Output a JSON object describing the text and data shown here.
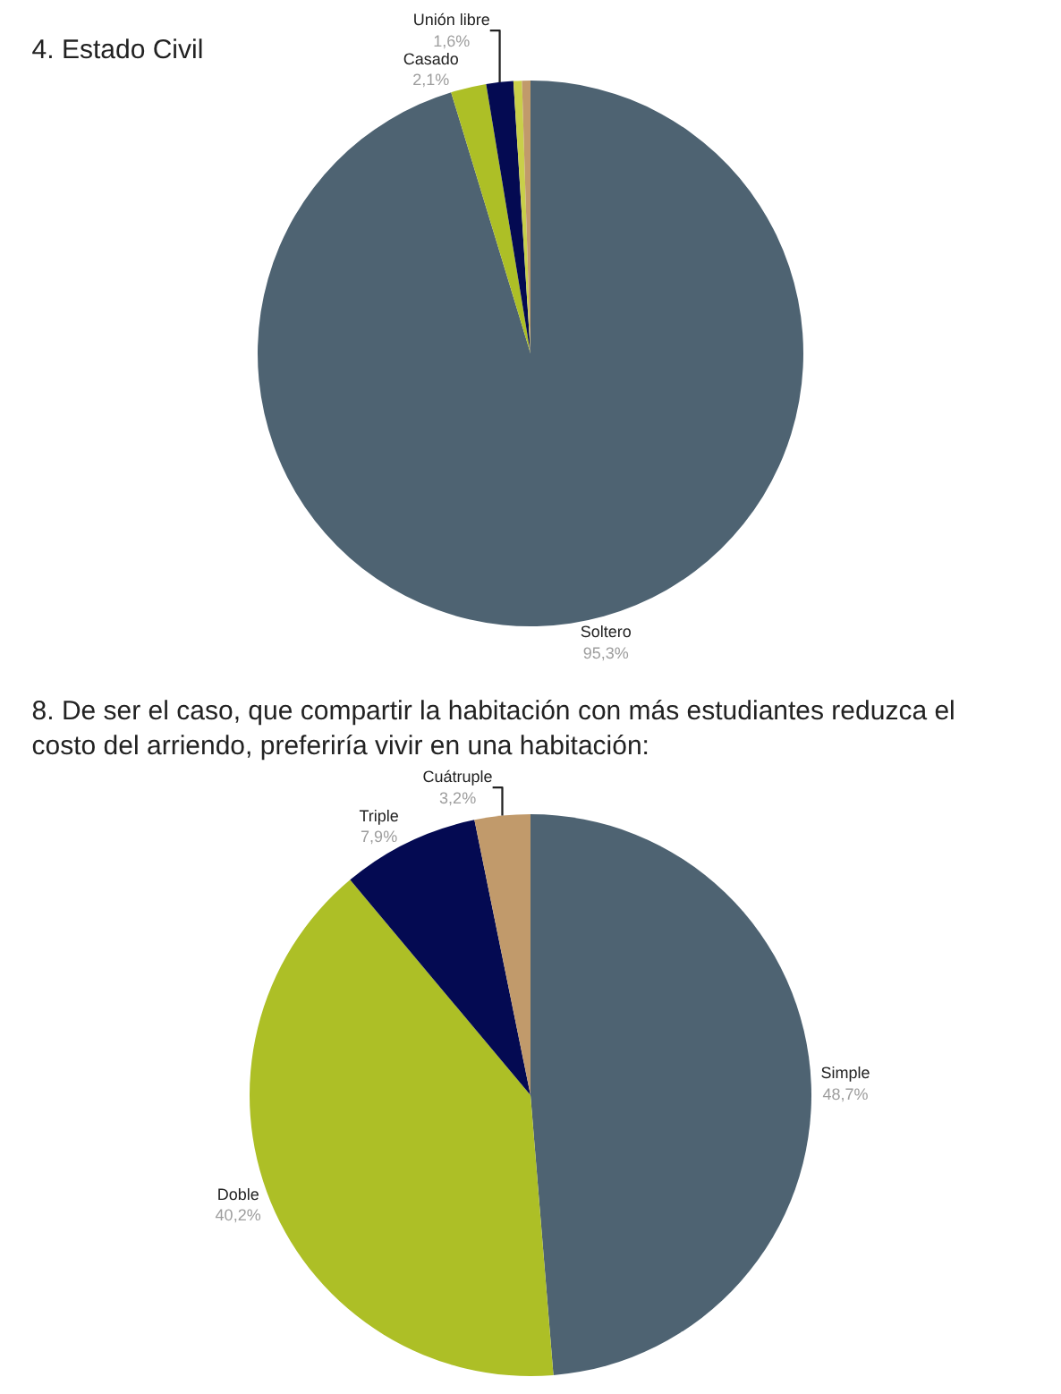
{
  "chart_data": [
    {
      "type": "pie",
      "title": "4. Estado Civil",
      "categories": [
        "Soltero",
        "Casado",
        "Unión libre",
        null,
        null
      ],
      "values": [
        95.3,
        2.1,
        1.6,
        0.5,
        0.5
      ],
      "value_labels": [
        "95,3%",
        "2,1%",
        "1,6%",
        null,
        null
      ],
      "colors": [
        "#4e6372",
        "#adbf26",
        "#040a52",
        "#c9cf4a",
        "#c19a6b"
      ],
      "legend": false
    },
    {
      "type": "pie",
      "title": "8. De ser el caso, que compartir la habitación con más estudiantes reduzca el costo del arriendo, preferiría vivir en una habitación:",
      "categories": [
        "Simple",
        "Doble",
        "Triple",
        "Cuátruple"
      ],
      "values": [
        48.7,
        40.2,
        7.9,
        3.2
      ],
      "value_labels": [
        "48,7%",
        "40,2%",
        "7,9%",
        "3,2%"
      ],
      "colors": [
        "#4e6372",
        "#adbf26",
        "#040a52",
        "#c19a6b"
      ],
      "legend": false
    }
  ]
}
